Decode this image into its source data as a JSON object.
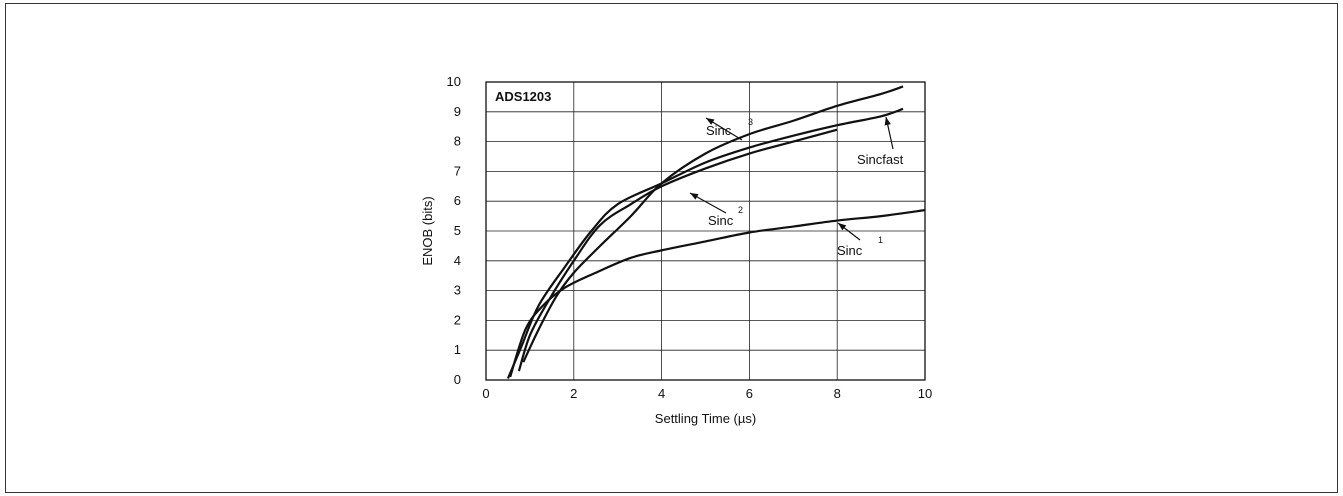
{
  "chart_data": {
    "type": "line",
    "title": "ADS1203",
    "xlabel": "Settling Time (µs)",
    "ylabel": "ENOB (bits)",
    "xlim": [
      0,
      10
    ],
    "ylim": [
      0,
      10
    ],
    "x_ticks": [
      "0",
      "2",
      "4",
      "6",
      "8",
      "10"
    ],
    "y_ticks": [
      "0",
      "1",
      "2",
      "3",
      "4",
      "5",
      "6",
      "7",
      "8",
      "9",
      "10"
    ],
    "grid": true,
    "legend": "none",
    "series": [
      {
        "name": "Sinc1",
        "x": [
          0.55,
          0.9,
          1.3,
          1.8,
          2.5,
          3.3,
          4.0,
          5.0,
          6.0,
          7.0,
          8.0,
          9.0,
          10.0
        ],
        "y": [
          0.1,
          1.7,
          2.5,
          3.1,
          3.6,
          4.1,
          4.35,
          4.65,
          4.95,
          5.15,
          5.35,
          5.5,
          5.7
        ]
      },
      {
        "name": "Sinc2",
        "x": [
          0.75,
          1.0,
          1.4,
          2.0,
          2.6,
          3.3,
          4.0,
          5.0,
          6.0,
          7.0,
          8.0
        ],
        "y": [
          0.3,
          1.5,
          2.6,
          4.0,
          5.2,
          5.9,
          6.5,
          7.1,
          7.6,
          8.0,
          8.4
        ]
      },
      {
        "name": "Sinc3",
        "x": [
          0.85,
          1.2,
          1.6,
          2.0,
          2.6,
          3.3,
          4.0,
          5.0,
          6.0,
          7.0,
          8.0,
          9.0,
          9.5
        ],
        "y": [
          0.6,
          1.7,
          2.8,
          3.6,
          4.5,
          5.5,
          6.6,
          7.6,
          8.25,
          8.7,
          9.2,
          9.6,
          9.85
        ]
      },
      {
        "name": "Sincfast",
        "x": [
          0.5,
          0.8,
          1.2,
          1.8,
          2.4,
          3.0,
          4.0,
          5.0,
          6.0,
          7.0,
          8.0,
          9.0,
          9.5
        ],
        "y": [
          0.05,
          1.1,
          2.5,
          3.8,
          5.0,
          5.9,
          6.6,
          7.3,
          7.8,
          8.2,
          8.55,
          8.85,
          9.1
        ]
      }
    ],
    "annotations": [
      {
        "base": "Sinc",
        "sup": "3"
      },
      {
        "base": "Sinc",
        "sup": "2"
      },
      {
        "base": "Sinc",
        "sup": "1"
      },
      {
        "base": "Sincfast",
        "sup": ""
      }
    ]
  }
}
